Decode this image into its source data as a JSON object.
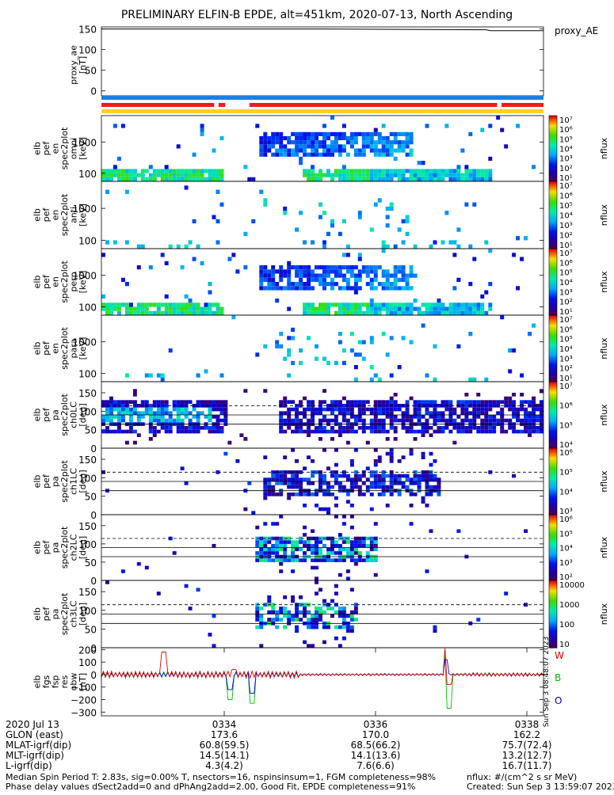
{
  "header": {
    "title": "PRELIMINARY ELFIN-B EPDE, alt=451km, 2020-07-13, North Ascending",
    "proxy_label": "proxy_AE"
  },
  "colors": {
    "state_blue": "#1e7fe0",
    "state_red": "#ee1c1c",
    "state_yellow": "#ffd21e",
    "line_red": "#e00000",
    "line_green": "#00c000",
    "line_blue": "#0000e0"
  },
  "chart_data": [
    {
      "id": "proxy_ae",
      "type": "line",
      "ylabel": [
        "proxy_ae",
        "[nT]"
      ],
      "yticks": [
        "150",
        "100",
        "50",
        "0"
      ],
      "ylim": [
        -12,
        155
      ],
      "series": [
        {
          "x": [
            0,
            0.5,
            0.87,
            0.88,
            1.0
          ],
          "y": [
            150,
            150,
            148,
            146,
            146
          ]
        }
      ]
    },
    {
      "id": "state_bars",
      "type": "bar",
      "rows": [
        {
          "color": "#1e7fe0",
          "segments": [
            [
              0,
              1
            ]
          ]
        },
        {
          "color": "#ee1c1c",
          "segments": [
            [
              0,
              0.255
            ],
            [
              0.265,
              0.28
            ],
            [
              0.335,
              0.895
            ],
            [
              0.905,
              1
            ]
          ]
        },
        {
          "color": "#ffd21e",
          "segments": [
            [
              0,
              1
            ]
          ]
        }
      ]
    },
    {
      "id": "pef_en_spec2plot_omni",
      "type": "heatmap",
      "ylabel": [
        "elb",
        "pef",
        "en",
        "spec2plot",
        "omni",
        "[keV]"
      ],
      "yticks": [
        "1000",
        "100"
      ],
      "colorbar": {
        "label": "nflux",
        "ticks": [
          "10^7",
          "10^6",
          "10^5",
          "10^4",
          "10^3",
          "10^2",
          "10^1"
        ]
      },
      "ylim": [
        55,
        7000
      ],
      "scale": "log"
    },
    {
      "id": "pef_en_spec2plot_anti",
      "type": "heatmap",
      "ylabel": [
        "elb",
        "pef",
        "en",
        "spec2plot",
        "anti",
        "[keV]"
      ],
      "yticks": [
        "1000",
        "100"
      ],
      "colorbar": {
        "label": "nflux",
        "ticks": [
          "10^7",
          "10^6",
          "10^5",
          "10^4",
          "10^3",
          "10^2",
          "10^1"
        ]
      },
      "ylim": [
        55,
        7000
      ],
      "scale": "log"
    },
    {
      "id": "pef_en_spec2plot_perp",
      "type": "heatmap",
      "ylabel": [
        "elb",
        "pef",
        "en",
        "spec2plot",
        "perp",
        "[keV]"
      ],
      "yticks": [
        "1000",
        "100"
      ],
      "colorbar": {
        "label": "nflux",
        "ticks": [
          "10^7",
          "10^6",
          "10^5",
          "10^4",
          "10^3",
          "10^2",
          "10^1"
        ]
      },
      "ylim": [
        55,
        7000
      ],
      "scale": "log"
    },
    {
      "id": "pef_en_spec2plot_para",
      "type": "heatmap",
      "ylabel": [
        "elb",
        "pef",
        "en",
        "spec2plot",
        "para",
        "[keV]"
      ],
      "yticks": [
        "1000",
        "100"
      ],
      "colorbar": {
        "label": "nflux",
        "ticks": [
          "10^7",
          "10^6",
          "10^5",
          "10^4",
          "10^3",
          "10^2",
          "10^1"
        ]
      },
      "ylim": [
        55,
        7000
      ],
      "scale": "log"
    },
    {
      "id": "pef_pa_spec2plot_ch0LC",
      "type": "heatmap",
      "ylabel": [
        "elb",
        "pef",
        "pa",
        "spec2plot",
        "ch0LC",
        "[deg]"
      ],
      "yticks": [
        "150",
        "100",
        "50",
        "0"
      ],
      "ylim": [
        0,
        180
      ],
      "colorbar": {
        "label": "nflux",
        "ticks": [
          "10^7",
          "10^6",
          "10^5",
          "10^4"
        ]
      }
    },
    {
      "id": "pef_pa_spec2plot_ch1LC",
      "type": "heatmap",
      "ylabel": [
        "elb",
        "pef",
        "pa",
        "spec2plot",
        "ch1LC",
        "[deg]"
      ],
      "yticks": [
        "150",
        "100",
        "50",
        "0"
      ],
      "ylim": [
        0,
        180
      ],
      "colorbar": {
        "label": "nflux",
        "ticks": [
          "10^6",
          "10^5",
          "10^4",
          "10^3"
        ]
      }
    },
    {
      "id": "pef_pa_spec2plot_ch2LC",
      "type": "heatmap",
      "ylabel": [
        "elb",
        "pef",
        "pa",
        "spec2plot",
        "ch2LC",
        "[deg]"
      ],
      "yticks": [
        "150",
        "100",
        "50",
        "0"
      ],
      "ylim": [
        0,
        180
      ],
      "colorbar": {
        "label": "nflux",
        "ticks": [
          "10^6",
          "10^5",
          "10^4",
          "10^3",
          "10^2"
        ]
      }
    },
    {
      "id": "pef_pa_spec2plot_ch3LC",
      "type": "heatmap",
      "ylabel": [
        "elb",
        "pef",
        "pa",
        "spec2plot",
        "ch3LC",
        "[deg]"
      ],
      "yticks": [
        "150",
        "100",
        "50",
        "0"
      ],
      "ylim": [
        0,
        180
      ],
      "colorbar": {
        "label": "nflux",
        "ticks": [
          "10000",
          "1000",
          "100",
          "10"
        ]
      }
    },
    {
      "id": "fgs_fsp_res_obw",
      "type": "line",
      "ylabel": [
        "elb",
        "fgs",
        "fsp",
        "res",
        "obw",
        "[nT]"
      ],
      "yticks": [
        "200",
        "100",
        "0",
        "−100",
        "−200",
        "−300"
      ],
      "ylim": [
        -330,
        215
      ],
      "legend": [
        "W",
        "B",
        "O"
      ],
      "stamp": "Sun Sep  3 08:48:07 2023"
    }
  ],
  "footer": {
    "rows": [
      {
        "label": "2020 Jul 13",
        "values": [
          "0334",
          "0336",
          "0338"
        ]
      },
      {
        "label": "GLON (east)",
        "values": [
          "173.6",
          "170.0",
          "162.2"
        ]
      },
      {
        "label": "MLAT-igrf(dip)",
        "values": [
          "60.8(59.5)",
          "68.5(66.2)",
          "75.7(72.4)"
        ]
      },
      {
        "label": "MLT-igrf(dip)",
        "values": [
          "14.5(14.1)",
          "14.1(13.6)",
          "13.2(12.7)"
        ]
      },
      {
        "label": "L-igrf(dip)",
        "values": [
          "4.3(4.2)",
          "7.6(6.6)",
          "16.7(11.7)"
        ]
      }
    ],
    "note1": "Median Spin Period T: 2.83s, sig=0.00% T, nsectors=16, nspinsinsum=1, FGM completeness=98%",
    "note2": "Phase delay values dSect2add=0 and dPhAng2add=2.00, Good Fit, EPDE completeness=91%",
    "units": "nflux: #/(cm^2 s sr MeV)",
    "created": "Created: Sun Sep  3 13:59:07 2023"
  }
}
